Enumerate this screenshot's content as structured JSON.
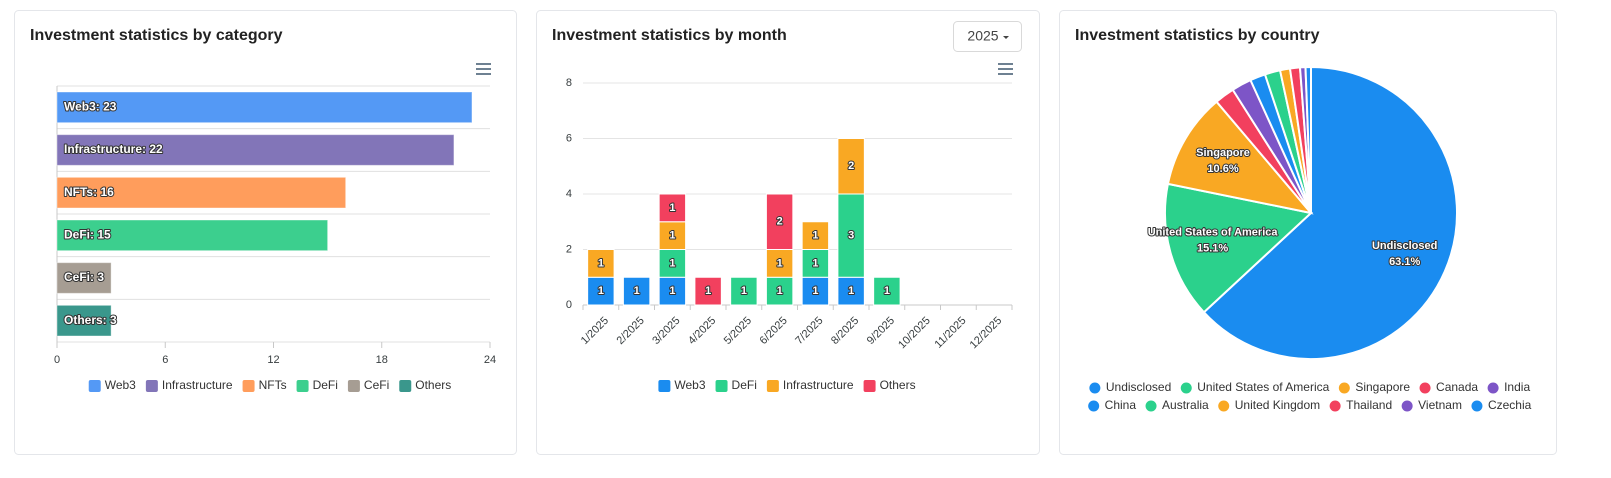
{
  "chart_data": [
    {
      "type": "bar",
      "horizontal": true,
      "title": "Investment statistics by category",
      "categories": [
        "Web3",
        "Infrastructure",
        "NFTs",
        "DeFi",
        "CeFi",
        "Others"
      ],
      "values": [
        23,
        22,
        16,
        15,
        3,
        3
      ],
      "value_labels": [
        "Web3: 23",
        "Infrastructure: 22",
        "NFTs: 16",
        "DeFi: 15",
        "CeFi: 3",
        "Others: 3"
      ],
      "colors": [
        "#5499f5",
        "#8275b8",
        "#ff9d5c",
        "#3ccf8e",
        "#a69d93",
        "#3a978c"
      ],
      "xlim": [
        0,
        24
      ],
      "xticks": [
        0,
        6,
        12,
        18,
        24
      ]
    },
    {
      "type": "stacked_bar",
      "title": "Investment statistics by month",
      "year": "2025",
      "categories": [
        "1/2025",
        "2/2025",
        "3/2025",
        "4/2025",
        "5/2025",
        "6/2025",
        "7/2025",
        "8/2025",
        "9/2025",
        "10/2025",
        "11/2025",
        "12/2025"
      ],
      "series": [
        {
          "name": "Web3",
          "color": "#1a8cf0",
          "values": [
            1,
            1,
            1,
            0,
            0,
            0,
            1,
            1,
            0,
            0,
            0,
            0
          ]
        },
        {
          "name": "DeFi",
          "color": "#2bd18c",
          "values": [
            0,
            0,
            1,
            0,
            1,
            1,
            1,
            3,
            1,
            0,
            0,
            0
          ]
        },
        {
          "name": "Infrastructure",
          "color": "#f9a823",
          "values": [
            1,
            0,
            1,
            0,
            0,
            1,
            1,
            2,
            0,
            0,
            0,
            0
          ]
        },
        {
          "name": "Others",
          "color": "#f2405e",
          "values": [
            0,
            0,
            1,
            1,
            0,
            2,
            0,
            0,
            0,
            0,
            0,
            0
          ]
        }
      ],
      "ylim": [
        0,
        8
      ],
      "yticks": [
        0,
        2,
        4,
        6,
        8
      ],
      "grid": true
    },
    {
      "type": "pie",
      "title": "Investment statistics by country",
      "categories": [
        "Undisclosed",
        "United States of America",
        "Singapore",
        "Canada",
        "India",
        "China",
        "Australia",
        "United Kingdom",
        "Thailand",
        "Vietnam",
        "Czechia"
      ],
      "values": [
        63.1,
        15.1,
        10.6,
        2.2,
        2.2,
        1.7,
        1.7,
        1.1,
        1.1,
        0.6,
        0.6
      ],
      "value_labels": [
        "63.1%",
        "15.1%",
        "10.6%",
        null,
        null,
        null,
        null,
        null,
        null,
        null,
        null
      ],
      "colors": [
        "#1a8cf0",
        "#2bd18c",
        "#f9a823",
        "#f2405e",
        "#7d55c7",
        "#1a8cf0",
        "#2bd18c",
        "#f9a823",
        "#f2405e",
        "#7d55c7",
        "#1a8cf0"
      ]
    }
  ]
}
